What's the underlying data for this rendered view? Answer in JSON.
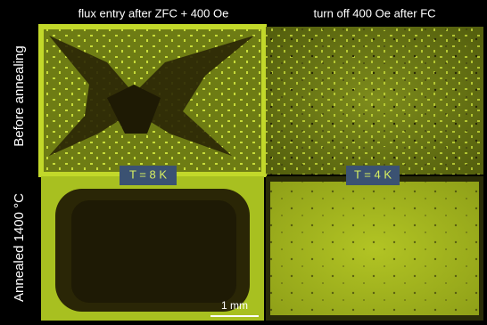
{
  "figure": {
    "columns": [
      "flux entry after ZFC + 400 Oe",
      "turn off 400 Oe after FC"
    ],
    "rows": [
      "Before annealing",
      "Annealed 1400 °C"
    ],
    "temperatures": [
      "T = 8 K",
      "T = 4 K"
    ],
    "scale_bar": "1 mm"
  }
}
